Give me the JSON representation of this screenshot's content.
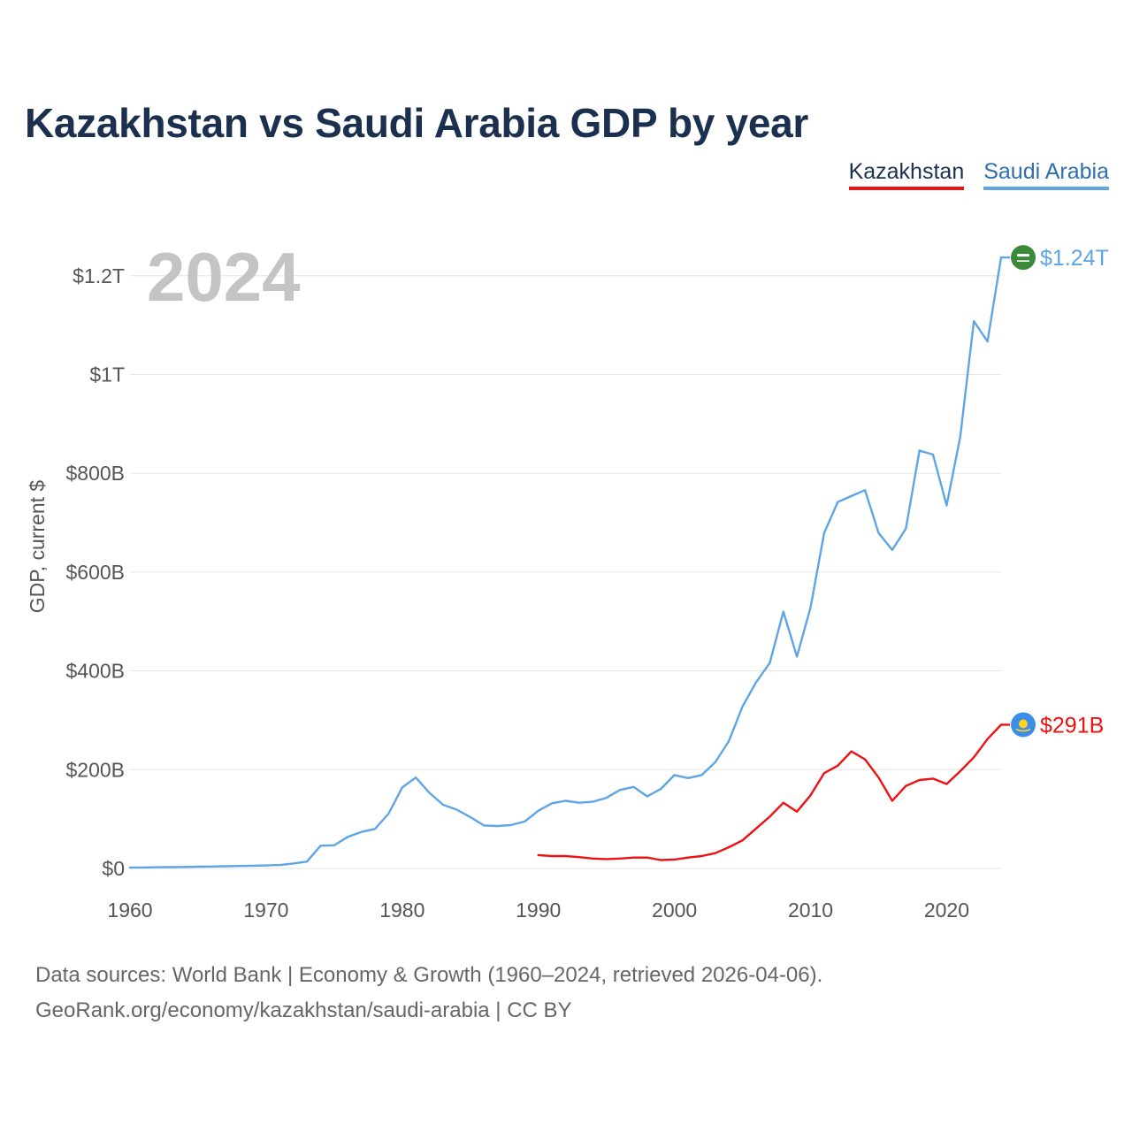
{
  "page": {
    "title": "Kazakhstan vs Saudi Arabia GDP by year",
    "footer_line1": "Data sources: World Bank | Economy & Growth (1960–2024, retrieved 2026-04-06).",
    "footer_line2": "GeoRank.org/economy/kazakhstan/saudi-arabia | CC BY"
  },
  "legend": {
    "kazakhstan": "Kazakhstan",
    "saudi_arabia": "Saudi Arabia"
  },
  "colors": {
    "kazakhstan": "#ee1111",
    "saudi_arabia": "#5ea5e5",
    "title": "#1b2f4f",
    "grid": "#e6e6e6",
    "year_watermark": "#c4c4c4"
  },
  "chart_data": {
    "type": "line",
    "title": "Kazakhstan vs Saudi Arabia GDP by year",
    "xlabel": "",
    "ylabel": "GDP, current $",
    "current_year_label": "2024",
    "xlim": [
      1960,
      2024
    ],
    "ylim": [
      0,
      1300
    ],
    "units": "billions of current USD",
    "x_ticks": [
      1960,
      1970,
      1980,
      1990,
      2000,
      2010,
      2020
    ],
    "y_ticks": [
      {
        "value": 0,
        "label": "$0"
      },
      {
        "value": 200,
        "label": "$200B"
      },
      {
        "value": 400,
        "label": "$400B"
      },
      {
        "value": 600,
        "label": "$600B"
      },
      {
        "value": 800,
        "label": "$800B"
      },
      {
        "value": 1000,
        "label": "$1T"
      },
      {
        "value": 1200,
        "label": "$1.2T"
      }
    ],
    "series": [
      {
        "name": "Saudi Arabia",
        "color": "#5ea5e5",
        "end_label": "$1.24T",
        "icon": "saudi-arabia-flag-icon",
        "x": [
          1960,
          1961,
          1962,
          1963,
          1964,
          1965,
          1966,
          1967,
          1968,
          1969,
          1970,
          1971,
          1972,
          1973,
          1974,
          1975,
          1976,
          1977,
          1978,
          1979,
          1980,
          1981,
          1982,
          1983,
          1984,
          1985,
          1986,
          1987,
          1988,
          1989,
          1990,
          1991,
          1992,
          1993,
          1994,
          1995,
          1996,
          1997,
          1998,
          1999,
          2000,
          2001,
          2002,
          2003,
          2004,
          2005,
          2006,
          2007,
          2008,
          2009,
          2010,
          2011,
          2012,
          2013,
          2014,
          2015,
          2016,
          2017,
          2018,
          2019,
          2020,
          2021,
          2022,
          2023,
          2024
        ],
        "values": [
          2,
          2,
          2.5,
          2.7,
          3,
          3.5,
          4,
          4.5,
          5,
          5.5,
          6,
          7,
          10,
          14,
          46,
          47,
          64,
          74,
          80,
          111,
          164,
          184,
          153,
          129,
          119,
          104,
          87,
          86,
          88,
          95,
          117,
          132,
          137,
          133,
          135,
          143,
          159,
          165,
          146,
          161,
          189,
          183,
          189,
          215,
          258,
          328,
          377,
          416,
          520,
          429,
          528,
          679,
          742,
          754,
          766,
          679,
          645,
          688,
          846,
          838,
          735,
          874,
          1108,
          1067,
          1237
        ]
      },
      {
        "name": "Kazakhstan",
        "color": "#ee1111",
        "end_label": "$291B",
        "icon": "kazakhstan-flag-icon",
        "x": [
          1990,
          1991,
          1992,
          1993,
          1994,
          1995,
          1996,
          1997,
          1998,
          1999,
          2000,
          2001,
          2002,
          2003,
          2004,
          2005,
          2006,
          2007,
          2008,
          2009,
          2010,
          2011,
          2012,
          2013,
          2014,
          2015,
          2016,
          2017,
          2018,
          2019,
          2020,
          2021,
          2022,
          2023,
          2024
        ],
        "values": [
          27,
          25,
          25,
          23,
          20,
          19,
          20,
          22,
          22,
          17,
          18,
          22,
          25,
          31,
          43,
          57,
          81,
          105,
          133,
          115,
          148,
          193,
          208,
          237,
          221,
          184,
          137,
          167,
          179,
          182,
          171,
          197,
          225,
          262,
          291
        ]
      }
    ]
  }
}
